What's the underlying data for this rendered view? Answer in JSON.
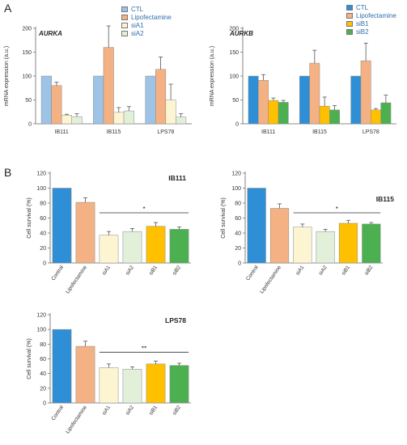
{
  "panels": {
    "a": "A",
    "b": "B"
  },
  "chart_data": [
    {
      "type": "bar",
      "title": "AURKA",
      "ylabel": "mRNA expression (a.u.)",
      "ylim": [
        0,
        200
      ],
      "yticks": [
        0,
        50,
        100,
        150,
        200
      ],
      "categories": [
        "IB111",
        "IB115",
        "LPS78"
      ],
      "series": [
        {
          "name": "CTL",
          "color": "#9dc3e6",
          "values": [
            100,
            100,
            100
          ],
          "errors": [
            0,
            0,
            0
          ]
        },
        {
          "name": "Lipofectamine",
          "color": "#f4b183",
          "values": [
            80,
            160,
            114
          ],
          "errors": [
            7,
            45,
            26
          ]
        },
        {
          "name": "siA1",
          "color": "#fdf5d2",
          "values": [
            18,
            24,
            50
          ],
          "errors": [
            2,
            10,
            33
          ]
        },
        {
          "name": "siA2",
          "color": "#e2f0d9",
          "values": [
            15,
            27,
            14
          ],
          "errors": [
            6,
            9,
            7
          ]
        }
      ]
    },
    {
      "type": "bar",
      "title": "AURKB",
      "ylabel": "mRNA expression (a.u.)",
      "ylim": [
        0,
        200
      ],
      "yticks": [
        0,
        50,
        100,
        150,
        200
      ],
      "categories": [
        "IB111",
        "IB115",
        "LPS78"
      ],
      "series": [
        {
          "name": "CTL",
          "color": "#2e8fd6",
          "values": [
            100,
            100,
            100
          ],
          "errors": [
            0,
            0,
            0
          ]
        },
        {
          "name": "Lipofectamine",
          "color": "#f4b183",
          "values": [
            91,
            127,
            132
          ],
          "errors": [
            12,
            27,
            37
          ]
        },
        {
          "name": "siB1",
          "color": "#ffc000",
          "values": [
            49,
            37,
            29
          ],
          "errors": [
            5,
            19,
            3
          ]
        },
        {
          "name": "siB2",
          "color": "#4caf50",
          "values": [
            45,
            29,
            44
          ],
          "errors": [
            4,
            9,
            16
          ]
        }
      ]
    },
    {
      "type": "bar",
      "title": "IB111",
      "ylabel": "Cell survival (%)",
      "ylim": [
        0,
        120
      ],
      "yticks": [
        0,
        20,
        40,
        60,
        80,
        100,
        120
      ],
      "categories": [
        "Control",
        "Lipofectamine",
        "siA1",
        "siA2",
        "siB1",
        "siB2"
      ],
      "colors": [
        "#2e8fd6",
        "#f4b183",
        "#fdf5d2",
        "#e2f0d9",
        "#ffc000",
        "#4caf50"
      ],
      "values": [
        100,
        81,
        37,
        42,
        49,
        45
      ],
      "errors": [
        0,
        6,
        5,
        4,
        5,
        3
      ],
      "significance": {
        "label": "*",
        "y": 67,
        "from": 2,
        "to": 5
      }
    },
    {
      "type": "bar",
      "title": "IB115",
      "ylabel": "Cell survival (%)",
      "ylim": [
        0,
        120
      ],
      "yticks": [
        0,
        20,
        40,
        60,
        80,
        100,
        120
      ],
      "categories": [
        "Control",
        "Lipofectamine",
        "siA1",
        "siA2",
        "siB1",
        "siB2"
      ],
      "colors": [
        "#2e8fd6",
        "#f4b183",
        "#fdf5d2",
        "#e2f0d9",
        "#ffc000",
        "#4caf50"
      ],
      "values": [
        100,
        73,
        48,
        42,
        53,
        52
      ],
      "errors": [
        0,
        6,
        4,
        3,
        4,
        2
      ],
      "significance": {
        "label": "*",
        "y": 67,
        "from": 2,
        "to": 5
      }
    },
    {
      "type": "bar",
      "title": "LPS78",
      "ylabel": "Cell survival (%)",
      "ylim": [
        0,
        120
      ],
      "yticks": [
        0,
        20,
        40,
        60,
        80,
        100,
        120
      ],
      "categories": [
        "Control",
        "Lipofectamine",
        "siA1",
        "siA2",
        "siB1",
        "siB2"
      ],
      "colors": [
        "#2e8fd6",
        "#f4b183",
        "#fdf5d2",
        "#e2f0d9",
        "#ffc000",
        "#4caf50"
      ],
      "values": [
        100,
        77,
        48,
        46,
        53,
        51
      ],
      "errors": [
        0,
        7,
        5,
        3,
        4,
        3
      ],
      "significance": {
        "label": "**",
        "y": 69,
        "from": 2,
        "to": 5
      }
    }
  ]
}
